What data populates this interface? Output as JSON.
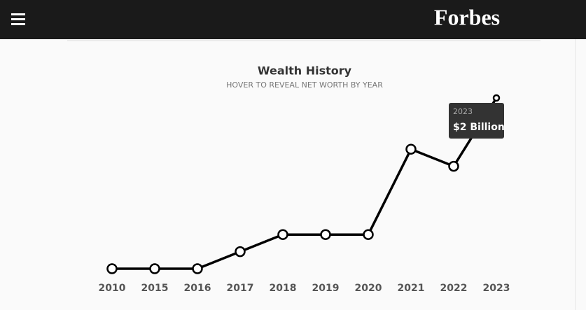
{
  "header": {
    "logo": "Forbes"
  },
  "chart_data": {
    "type": "line",
    "title": "Wealth History",
    "subtitle": "HOVER TO REVEAL NET WORTH BY YEAR",
    "categories": [
      "2010",
      "2015",
      "2016",
      "2017",
      "2018",
      "2019",
      "2020",
      "2021",
      "2022",
      "2023"
    ],
    "series": [
      {
        "name": "Net worth",
        "color": "#000000",
        "values": [
          1.0,
          1.0,
          1.0,
          1.1,
          1.2,
          1.2,
          1.2,
          1.7,
          1.6,
          2.0
        ]
      }
    ],
    "tooltip": "$2 Billion"
  }
}
